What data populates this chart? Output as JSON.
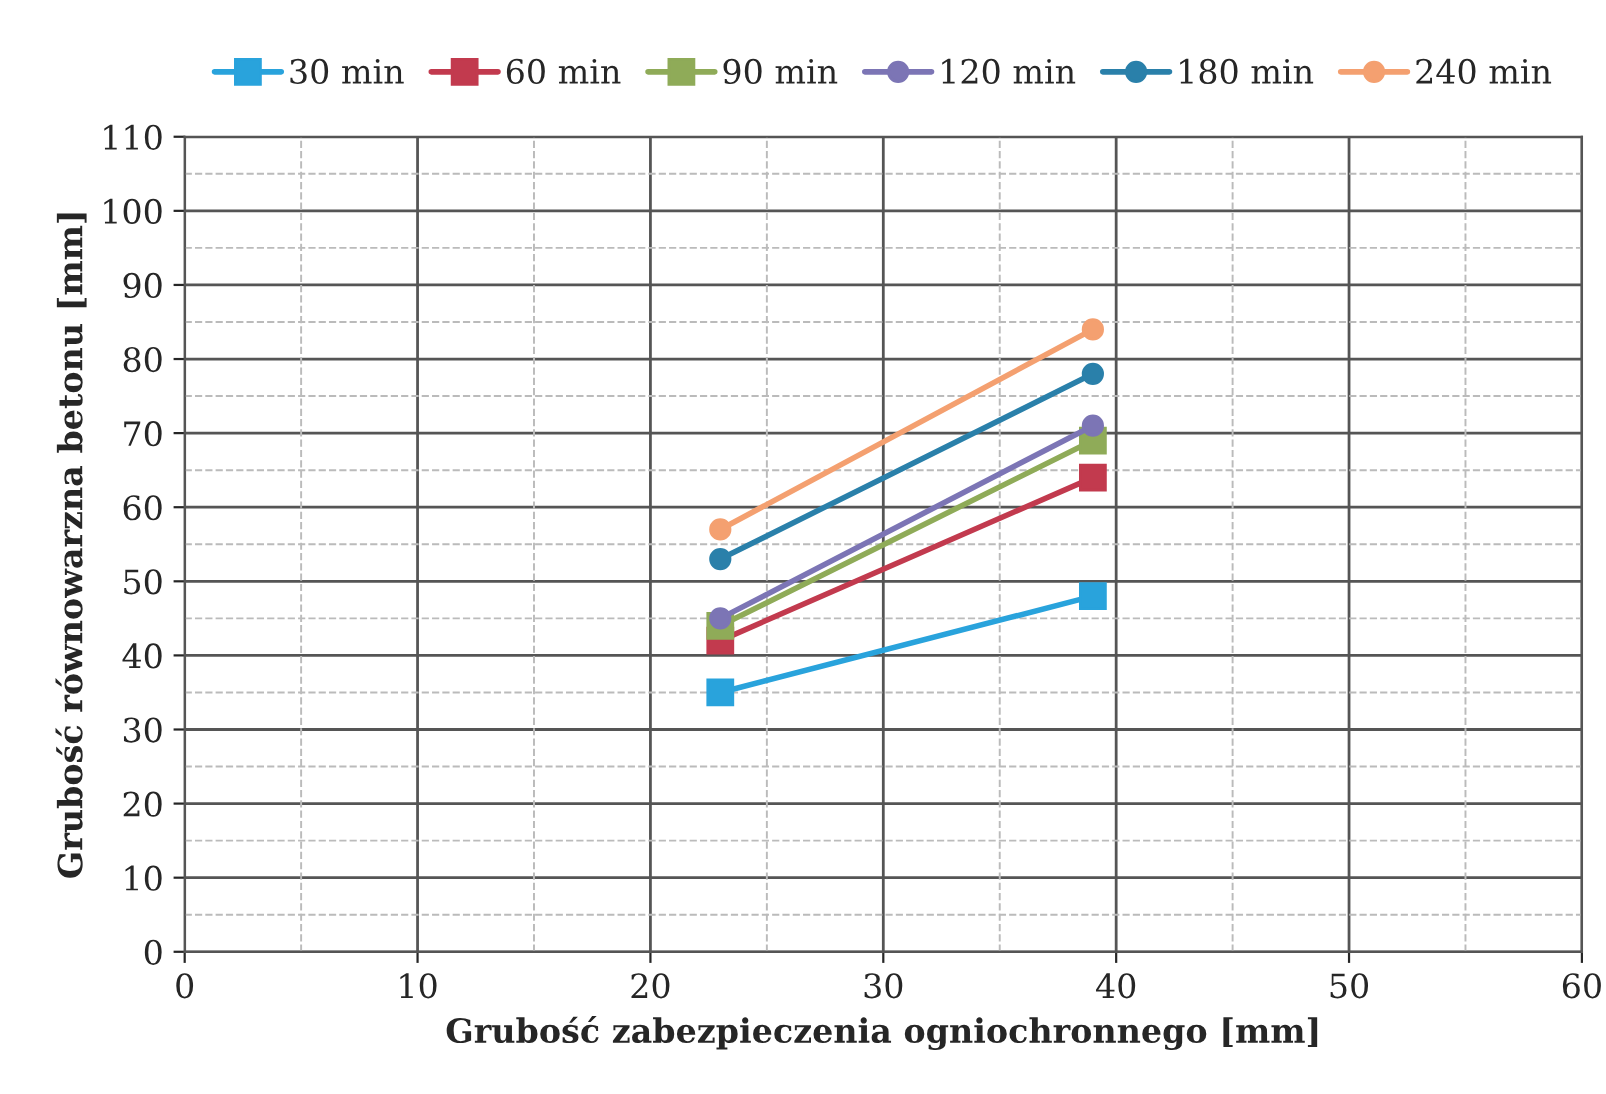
{
  "chart_data": {
    "type": "line",
    "xlabel": "Grubość zabezpieczenia ogniochronnego [mm]",
    "ylabel": "Grubość równowarzna betonu [mm]",
    "x": [
      23,
      39
    ],
    "series": [
      {
        "name": "30 min",
        "color": "#29a3dc",
        "marker": "square",
        "values": [
          35,
          48
        ]
      },
      {
        "name": "60 min",
        "color": "#c23a4e",
        "marker": "square",
        "values": [
          42,
          64
        ]
      },
      {
        "name": "90 min",
        "color": "#8fab58",
        "marker": "square",
        "values": [
          44,
          69
        ]
      },
      {
        "name": "120 min",
        "color": "#7c75b5",
        "marker": "circle",
        "values": [
          45,
          71
        ]
      },
      {
        "name": "180 min",
        "color": "#2a80aa",
        "marker": "circle",
        "values": [
          53,
          78
        ]
      },
      {
        "name": "240 min",
        "color": "#f4a070",
        "marker": "circle",
        "values": [
          57,
          84
        ]
      }
    ],
    "xlim": [
      0,
      60
    ],
    "xticks": [
      0,
      10,
      20,
      30,
      40,
      50,
      60
    ],
    "ylim": [
      0,
      110
    ],
    "yticks": [
      0,
      10,
      20,
      30,
      40,
      50,
      60,
      70,
      80,
      90,
      100,
      110
    ],
    "grid": true,
    "legend": "top",
    "line_style": "solid"
  }
}
